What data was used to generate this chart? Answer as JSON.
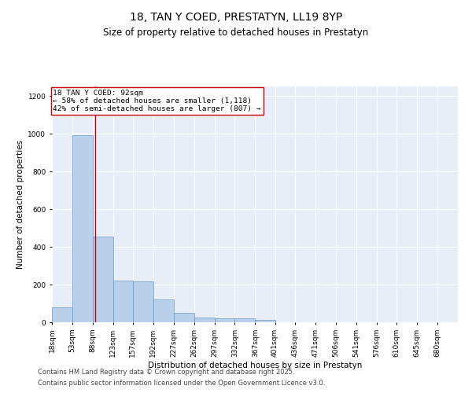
{
  "title": "18, TAN Y COED, PRESTATYN, LL19 8YP",
  "subtitle": "Size of property relative to detached houses in Prestatyn",
  "xlabel": "Distribution of detached houses by size in Prestatyn",
  "ylabel": "Number of detached properties",
  "footnote1": "Contains HM Land Registry data © Crown copyright and database right 2025.",
  "footnote2": "Contains public sector information licensed under the Open Government Licence v3.0.",
  "annotation_line1": "18 TAN Y COED: 92sqm",
  "annotation_line2": "← 58% of detached houses are smaller (1,118)",
  "annotation_line3": "42% of semi-detached houses are larger (807) →",
  "bar_color": "#b8d0ea",
  "bar_edge_color": "#6699cc",
  "vline_color": "#cc0000",
  "vline_x": 92,
  "bin_edges": [
    18,
    53,
    88,
    123,
    157,
    192,
    227,
    262,
    297,
    332,
    367,
    401,
    436,
    471,
    506,
    541,
    576,
    610,
    645,
    680,
    715
  ],
  "bar_heights": [
    80,
    990,
    455,
    220,
    215,
    120,
    50,
    25,
    22,
    22,
    12,
    2,
    1,
    1,
    1,
    0,
    0,
    0,
    0,
    0
  ],
  "ylim": [
    0,
    1250
  ],
  "yticks": [
    0,
    200,
    400,
    600,
    800,
    1000,
    1200
  ],
  "background_color": "#e8eef8",
  "grid_color": "#ffffff",
  "title_fontsize": 10,
  "subtitle_fontsize": 8.5,
  "axis_label_fontsize": 7.5,
  "tick_fontsize": 6.5,
  "annotation_fontsize": 6.8,
  "footnote_fontsize": 6.0
}
